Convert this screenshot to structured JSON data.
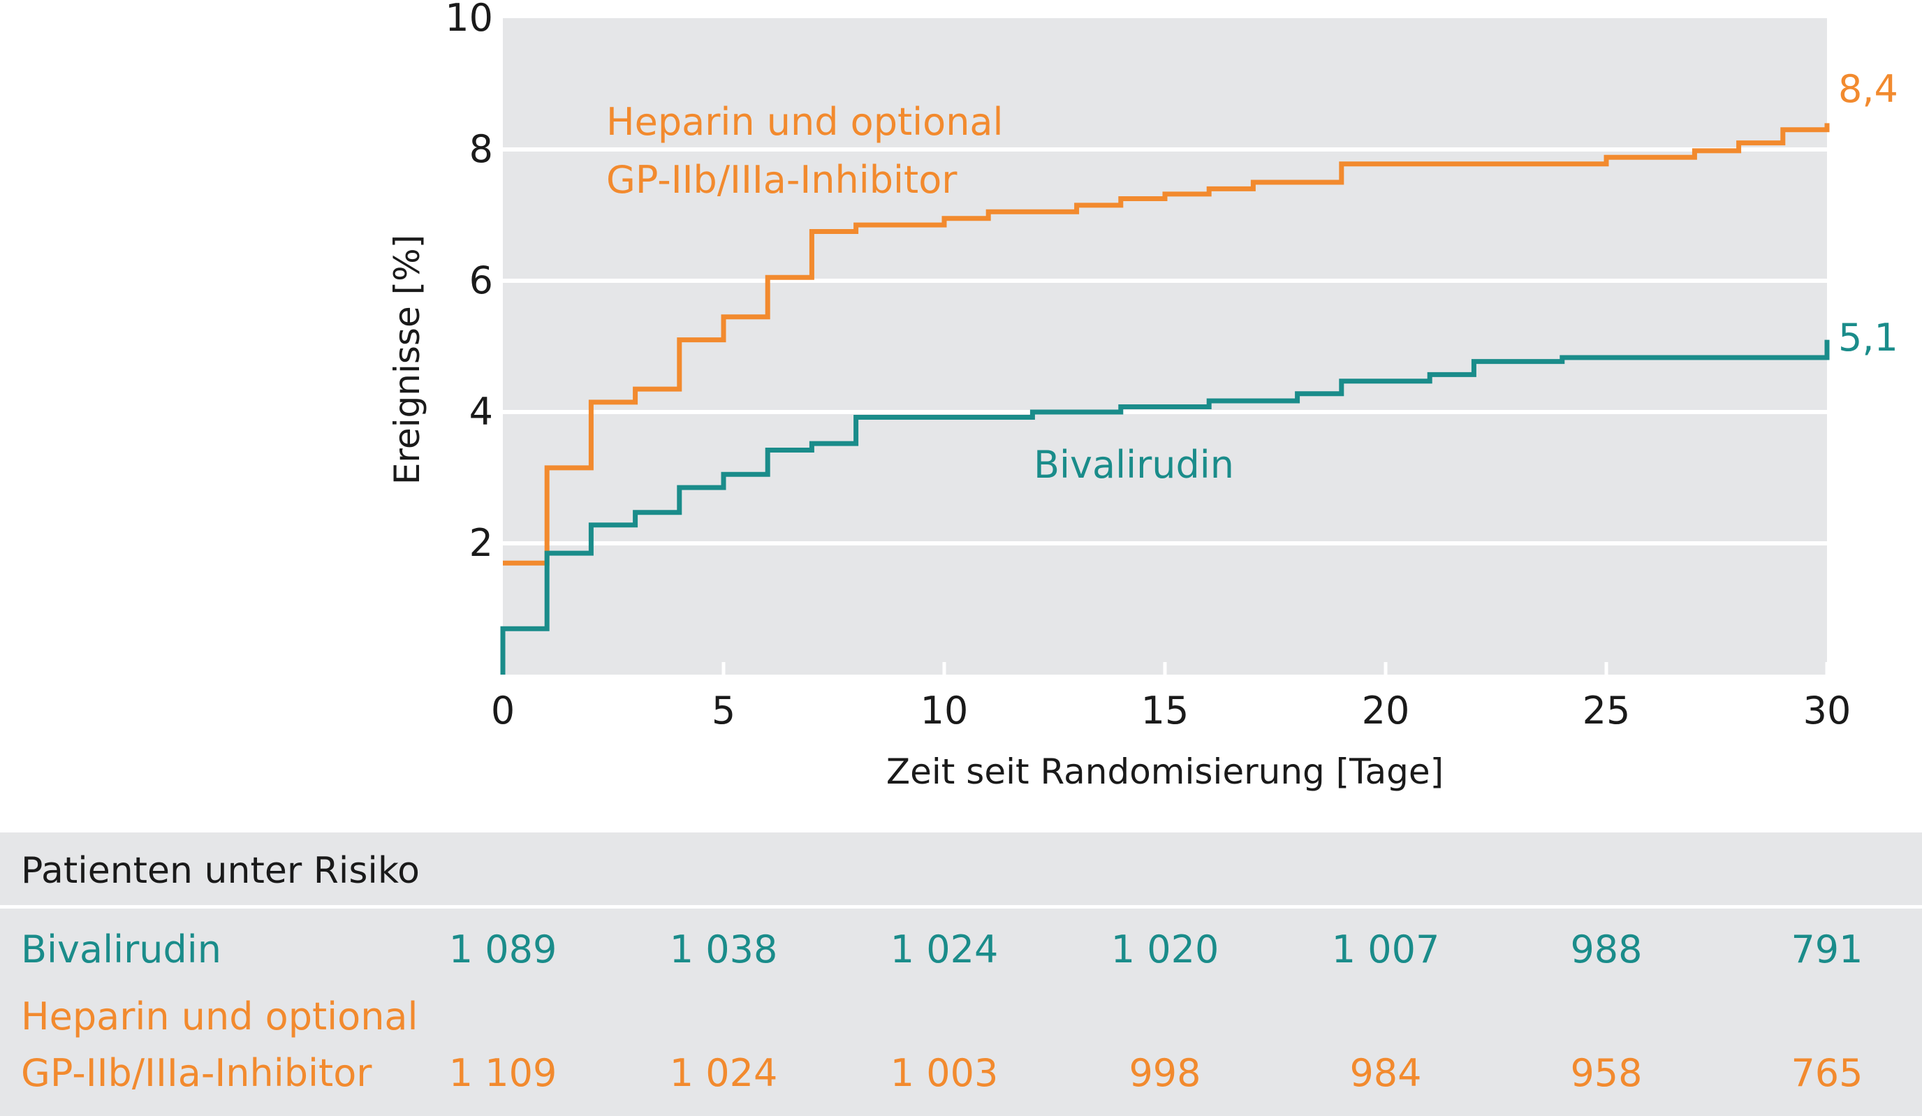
{
  "chart_data": {
    "type": "line",
    "step": true,
    "xlabel": "Zeit seit Randomisierung [Tage]",
    "ylabel": "Ereignisse [%]",
    "xlim": [
      0,
      30
    ],
    "ylim": [
      0,
      10
    ],
    "xticks": [
      "0",
      "5",
      "10",
      "15",
      "20",
      "25",
      "30"
    ],
    "yticks": [
      "2",
      "4",
      "6",
      "8",
      "10"
    ],
    "grid": "horizontal",
    "colors": {
      "heparin": "#f28a2e",
      "bivalirudin": "#1a8c8a",
      "plot_background": "#e5e6e8",
      "table_background": "#e5e6e8",
      "text": "#1a1a1a"
    },
    "series": [
      {
        "key": "heparin",
        "label_lines": [
          "Heparin und optional",
          "GP-IIb/IIIa-Inhibitor"
        ],
        "end_label": "8,4",
        "points": [
          [
            0,
            1.7
          ],
          [
            1,
            1.7
          ],
          [
            1,
            3.15
          ],
          [
            2,
            3.15
          ],
          [
            2,
            4.15
          ],
          [
            3,
            4.15
          ],
          [
            3,
            4.35
          ],
          [
            4,
            4.35
          ],
          [
            4,
            5.1
          ],
          [
            5,
            5.1
          ],
          [
            5,
            5.45
          ],
          [
            6,
            5.45
          ],
          [
            6,
            6.05
          ],
          [
            7,
            6.05
          ],
          [
            7,
            6.75
          ],
          [
            8,
            6.75
          ],
          [
            8,
            6.85
          ],
          [
            10,
            6.85
          ],
          [
            10,
            6.95
          ],
          [
            11,
            6.95
          ],
          [
            11,
            7.05
          ],
          [
            13,
            7.05
          ],
          [
            13,
            7.15
          ],
          [
            14,
            7.15
          ],
          [
            14,
            7.25
          ],
          [
            15,
            7.25
          ],
          [
            15,
            7.32
          ],
          [
            16,
            7.32
          ],
          [
            16,
            7.4
          ],
          [
            17,
            7.4
          ],
          [
            17,
            7.5
          ],
          [
            19,
            7.5
          ],
          [
            19,
            7.78
          ],
          [
            25,
            7.78
          ],
          [
            25,
            7.88
          ],
          [
            27,
            7.88
          ],
          [
            27,
            7.98
          ],
          [
            28,
            7.98
          ],
          [
            28,
            8.1
          ],
          [
            29,
            8.1
          ],
          [
            29,
            8.3
          ],
          [
            30,
            8.3
          ],
          [
            30,
            8.4
          ]
        ]
      },
      {
        "key": "bivalirudin",
        "label_lines": [
          "Bivalirudin"
        ],
        "end_label": "5,1",
        "points": [
          [
            0,
            0
          ],
          [
            0,
            0.7
          ],
          [
            1,
            0.7
          ],
          [
            1,
            1.85
          ],
          [
            2,
            1.85
          ],
          [
            2,
            2.28
          ],
          [
            3,
            2.28
          ],
          [
            3,
            2.47
          ],
          [
            4,
            2.47
          ],
          [
            4,
            2.85
          ],
          [
            5,
            2.85
          ],
          [
            5,
            3.05
          ],
          [
            6,
            3.05
          ],
          [
            6,
            3.42
          ],
          [
            7,
            3.42
          ],
          [
            7,
            3.52
          ],
          [
            8,
            3.52
          ],
          [
            8,
            3.92
          ],
          [
            12,
            3.92
          ],
          [
            12,
            4.0
          ],
          [
            14,
            4.0
          ],
          [
            14,
            4.08
          ],
          [
            16,
            4.08
          ],
          [
            16,
            4.17
          ],
          [
            18,
            4.17
          ],
          [
            18,
            4.28
          ],
          [
            19,
            4.28
          ],
          [
            19,
            4.47
          ],
          [
            21,
            4.47
          ],
          [
            21,
            4.57
          ],
          [
            22,
            4.57
          ],
          [
            22,
            4.77
          ],
          [
            24,
            4.77
          ],
          [
            24,
            4.83
          ],
          [
            30,
            4.83
          ],
          [
            30,
            5.1
          ]
        ]
      }
    ]
  },
  "risk_table": {
    "title": "Patienten unter Risiko",
    "rows": [
      {
        "key": "bivalirudin",
        "label_lines": [
          "Bivalirudin"
        ],
        "values": [
          "1 089",
          "1 038",
          "1 024",
          "1 020",
          "1 007",
          "988",
          "791"
        ]
      },
      {
        "key": "heparin",
        "label_lines": [
          "Heparin und optional",
          "GP-IIb/IIIa-Inhibitor"
        ],
        "values": [
          "1 109",
          "1 024",
          "1 003",
          "998",
          "984",
          "958",
          "765"
        ]
      }
    ]
  }
}
